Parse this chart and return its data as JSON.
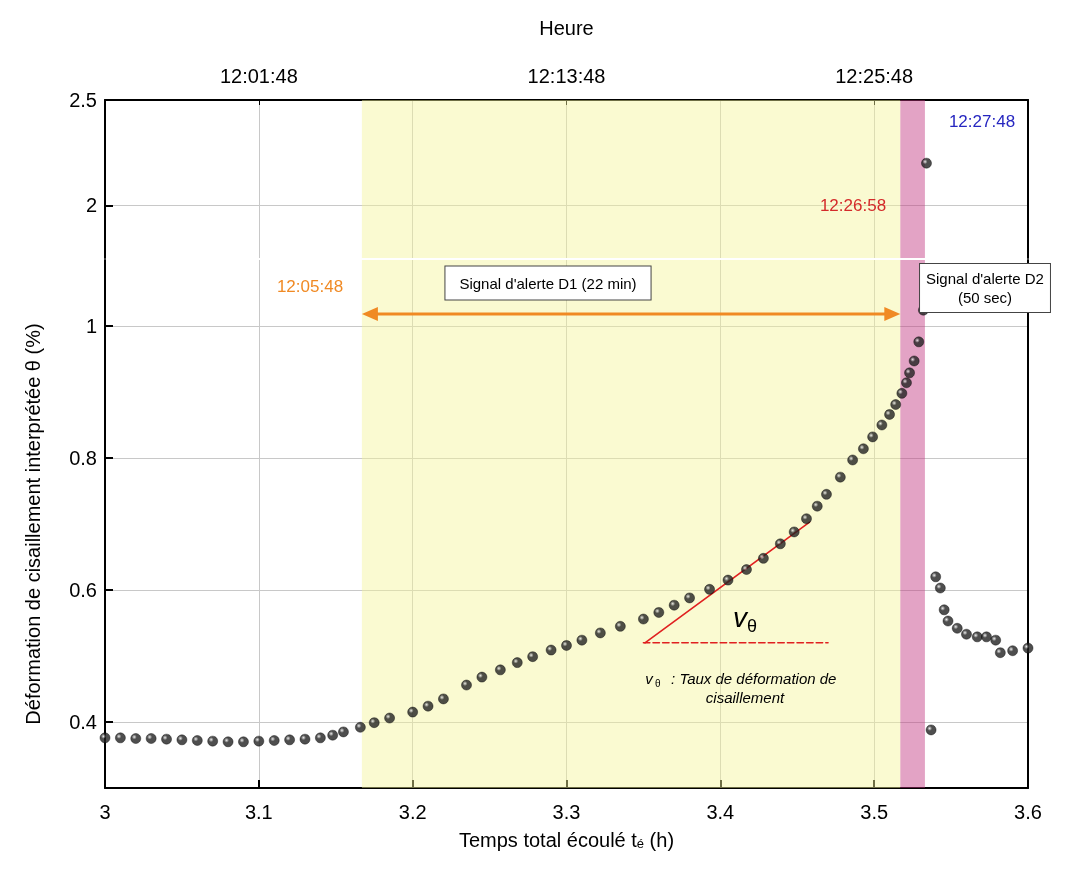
{
  "chart_data": [
    {
      "type": "scatter",
      "x2label": "Heure",
      "x": [
        3.534
      ],
      "values": [
        2.2
      ],
      "color": "#222222",
      "marker": "circle",
      "xlim": [
        3,
        3.6
      ],
      "xticks": [
        3,
        3.1,
        3.2,
        3.3,
        3.4,
        3.5,
        3.6
      ],
      "x2lim": [
        11.93,
        12.53
      ],
      "x2ticks": [
        {
          "value": 12.03,
          "label": "12:01:48"
        },
        {
          "value": 12.23,
          "label": "12:13:48"
        },
        {
          "value": 12.43,
          "label": "12:25:48"
        }
      ],
      "ylim": [
        1.75,
        2.5
      ],
      "yticks": [
        2,
        2.5
      ],
      "tick_labels": "y",
      "grid": true,
      "bands": [
        {
          "axis": "x",
          "from": 3.167,
          "to": 3.517,
          "color": "#f4f49a"
        },
        {
          "axis": "x",
          "from": 3.517,
          "to": 3.533,
          "color": "#c2337e"
        }
      ],
      "annotations": [
        "12:26:58",
        "12:27:48"
      ]
    },
    {
      "type": "scatter",
      "xlabel": "Temps total écoulé t$_{é}$ (h)",
      "ylabel": "Déformation de cisaillement interprétée θ (%)",
      "marker": "circle",
      "grid": true,
      "xlim": [
        3,
        3.6
      ],
      "xticks": [
        3,
        3.1,
        3.2,
        3.3,
        3.4,
        3.5,
        3.6
      ],
      "ylim": [
        0.3,
        1.1
      ],
      "yticks": [
        0.4,
        0.6,
        0.8,
        1
      ],
      "series": [
        {
          "color": "#222222",
          "x": [
            3.0,
            3.01,
            3.02,
            3.03,
            3.04,
            3.05,
            3.06,
            3.07,
            3.08,
            3.09,
            3.1,
            3.11,
            3.12,
            3.13,
            3.14,
            3.148,
            3.155,
            3.166,
            3.175,
            3.185,
            3.2,
            3.21,
            3.22,
            3.235,
            3.245,
            3.257,
            3.268,
            3.278,
            3.29,
            3.3,
            3.31,
            3.322,
            3.335,
            3.35,
            3.36,
            3.37,
            3.38,
            3.393,
            3.405,
            3.417,
            3.428,
            3.439,
            3.448,
            3.456,
            3.463,
            3.469,
            3.478,
            3.486,
            3.493,
            3.499,
            3.505,
            3.51,
            3.514,
            3.518,
            3.521,
            3.523,
            3.526,
            3.529,
            3.532,
            3.537,
            3.54,
            3.543,
            3.5455,
            3.548,
            3.554,
            3.56,
            3.567,
            3.573,
            3.579,
            3.582,
            3.59,
            3.6
          ],
          "values": [
            0.376,
            0.376,
            0.375,
            0.375,
            0.374,
            0.373,
            0.372,
            0.371,
            0.37,
            0.37,
            0.371,
            0.372,
            0.373,
            0.374,
            0.376,
            0.38,
            0.385,
            0.392,
            0.399,
            0.406,
            0.415,
            0.424,
            0.435,
            0.456,
            0.468,
            0.479,
            0.49,
            0.499,
            0.509,
            0.516,
            0.524,
            0.535,
            0.545,
            0.556,
            0.566,
            0.577,
            0.588,
            0.601,
            0.615,
            0.631,
            0.648,
            0.67,
            0.688,
            0.708,
            0.727,
            0.745,
            0.771,
            0.797,
            0.814,
            0.832,
            0.85,
            0.866,
            0.881,
            0.898,
            0.914,
            0.929,
            0.947,
            0.976,
            1.024,
            0.388,
            0.62,
            0.603,
            0.57,
            0.553,
            0.542,
            0.533,
            0.529,
            0.529,
            0.524,
            0.505,
            0.508,
            0.512
          ]
        },
        {
          "type": "line",
          "color": "#e02020",
          "marker": "none",
          "x": [
            3.351,
            3.458
          ],
          "values": [
            0.52,
            0.703
          ]
        },
        {
          "type": "line",
          "color": "#e02020",
          "marker": "none",
          "line_style": "dashed",
          "x": [
            3.35,
            3.47
          ],
          "values": [
            0.52,
            0.52
          ]
        }
      ],
      "bands": [
        {
          "axis": "x",
          "from": 3.167,
          "to": 3.517,
          "color": "#f4f49a"
        },
        {
          "axis": "x",
          "from": 3.517,
          "to": 3.533,
          "color": "#c2337e"
        }
      ],
      "annotations": [
        "12:05:48",
        "Signal d'alerte D1 (22 min)",
        "Signal d'alerte D2\n(50 sec)",
        "v$_{θ}$",
        "v$_{θ}$ : Taux de déformation de cisaillement"
      ]
    }
  ]
}
